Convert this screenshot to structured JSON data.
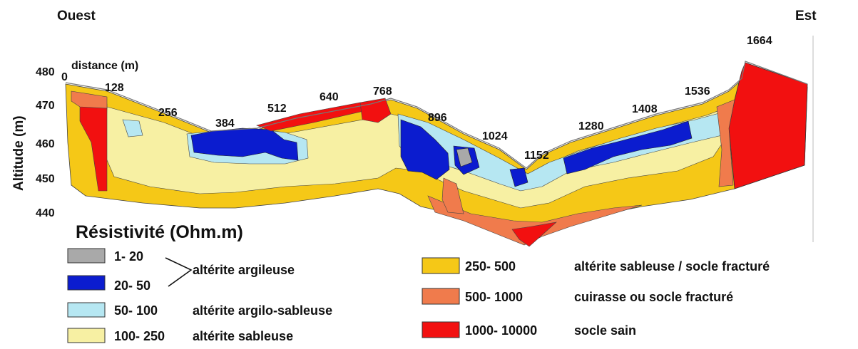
{
  "profile": {
    "west_label": "Ouest",
    "east_label": "Est",
    "y_axis_title": "Altitude (m)",
    "x_axis_title": "distance (m)",
    "y_ticks": [
      "480",
      "470",
      "460",
      "450",
      "440"
    ],
    "distance_marks": [
      "0",
      "128",
      "256",
      "384",
      "512",
      "640",
      "768",
      "896",
      "1024",
      "1152",
      "1280",
      "1408",
      "1536",
      "1664"
    ]
  },
  "legend": {
    "title": "Résistivité (Ohm.m)",
    "items": [
      {
        "range": "1- 20",
        "color": "#a9a9a9"
      },
      {
        "range": "20- 50",
        "color": "#0b1ccf"
      },
      {
        "range": "50- 100",
        "color": "#b6e7f2",
        "description": "altérite argilo-sableuse"
      },
      {
        "range": "100- 250",
        "color": "#f7f0a3",
        "description": "altérite sableuse"
      },
      {
        "range": "250- 500",
        "color": "#f5c817",
        "description": "altérite sableuse / socle fracturé"
      },
      {
        "range": "500- 1000",
        "color": "#f07b4c",
        "description": "cuirasse ou socle fracturé"
      },
      {
        "range": "1000- 10000",
        "color": "#f21010",
        "description": "socle sain"
      }
    ],
    "group_label": "altérite argileuse"
  }
}
